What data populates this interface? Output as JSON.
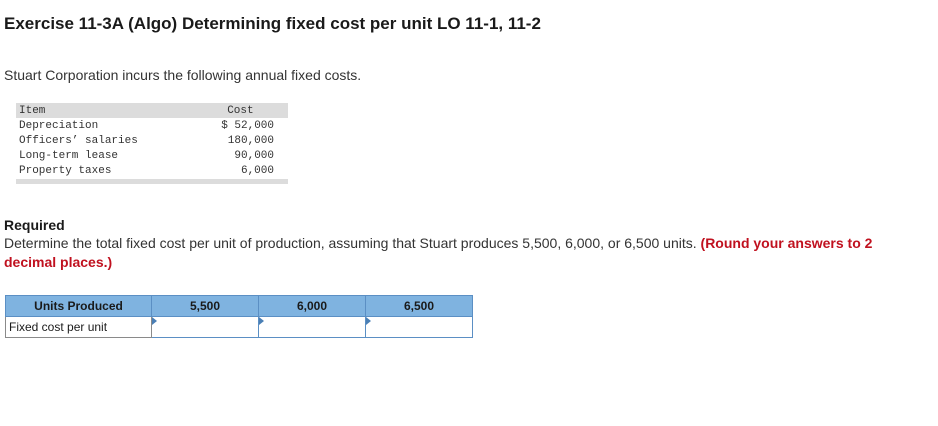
{
  "exercise": {
    "title": "Exercise 11-3A (Algo) Determining fixed cost per unit LO 11-1, 11-2",
    "intro": "Stuart Corporation incurs the following annual fixed costs."
  },
  "cost_table": {
    "headers": {
      "item": "Item",
      "cost": "Cost"
    },
    "rows": [
      {
        "item": "Depreciation",
        "cost": "$ 52,000"
      },
      {
        "item": "Officers’ salaries",
        "cost": "180,000"
      },
      {
        "item": "Long-term lease",
        "cost": "90,000"
      },
      {
        "item": "Property taxes",
        "cost": "6,000"
      }
    ]
  },
  "required": {
    "heading": "Required",
    "text": "Determine the total fixed cost per unit of production, assuming that Stuart produces 5,500, 6,000, or 6,500 units.",
    "note": "(Round your answers to 2 decimal places.)"
  },
  "answer_table": {
    "row_header": "Units Produced",
    "columns": [
      "5,500",
      "6,000",
      "6,500"
    ],
    "row_label": "Fixed cost per unit",
    "values": [
      "",
      "",
      ""
    ]
  },
  "colors": {
    "header_blue": "#7fb3e0",
    "note_red": "#c0111f",
    "table_gray": "#dcdcdc"
  }
}
